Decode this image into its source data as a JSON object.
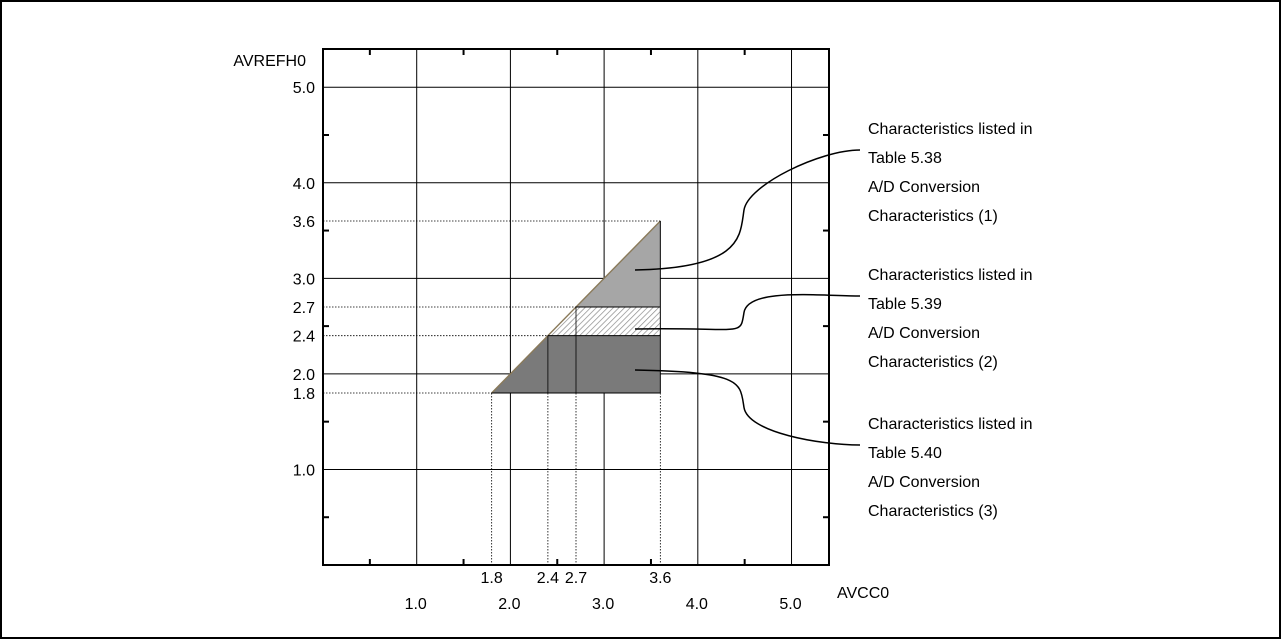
{
  "chart_data": {
    "type": "region-plot",
    "xlabel": "AVCC0",
    "ylabel": "AVREFH0",
    "xlim": [
      0,
      5.4
    ],
    "ylim": [
      0,
      5.4
    ],
    "x_major_ticks": [
      1.0,
      2.0,
      3.0,
      4.0,
      5.0
    ],
    "x_major_labels": [
      "1.0",
      "2.0",
      "3.0",
      "4.0",
      "5.0"
    ],
    "y_major_ticks": [
      1.0,
      2.0,
      3.0,
      4.0,
      5.0
    ],
    "y_major_labels": [
      "1.0",
      "2.0",
      "3.0",
      "4.0",
      "5.0"
    ],
    "x_special_ticks": [
      1.8,
      2.4,
      2.7,
      3.6
    ],
    "x_special_labels": [
      "1.8",
      "2.4",
      "2.7",
      "3.6"
    ],
    "y_special_ticks": [
      1.8,
      2.4,
      2.7,
      3.6
    ],
    "y_special_labels": [
      "1.8",
      "2.4",
      "2.7",
      "3.6"
    ],
    "grid": true,
    "regions": [
      {
        "id": "region-table-5-38",
        "vertices": [
          [
            3.0,
            3.0
          ],
          [
            3.6,
            3.6
          ],
          [
            3.6,
            2.7
          ],
          [
            2.7,
            2.7
          ]
        ],
        "fill": "#a6a6a6",
        "pattern": "solid",
        "label_lines": [
          "Characteristics listed in",
          "Table 5.38",
          "A/D Conversion",
          "Characteristics (1)"
        ]
      },
      {
        "id": "region-table-5-39",
        "vertices": [
          [
            2.4,
            2.4
          ],
          [
            2.7,
            2.7
          ],
          [
            3.6,
            2.7
          ],
          [
            3.6,
            2.4
          ]
        ],
        "fill": "#ffffff",
        "pattern": "hatched",
        "label_lines": [
          "Characteristics listed in",
          "Table 5.39",
          "A/D Conversion",
          "Characteristics (2)"
        ]
      },
      {
        "id": "region-table-5-40",
        "vertices": [
          [
            1.8,
            1.8
          ],
          [
            2.4,
            2.4
          ],
          [
            3.6,
            2.4
          ],
          [
            3.6,
            1.8
          ]
        ],
        "fill": "#7a7a7a",
        "pattern": "solid",
        "label_lines": [
          "Characteristics listed in",
          "Table 5.40",
          "A/D Conversion",
          "Characteristics (3)"
        ]
      }
    ]
  }
}
